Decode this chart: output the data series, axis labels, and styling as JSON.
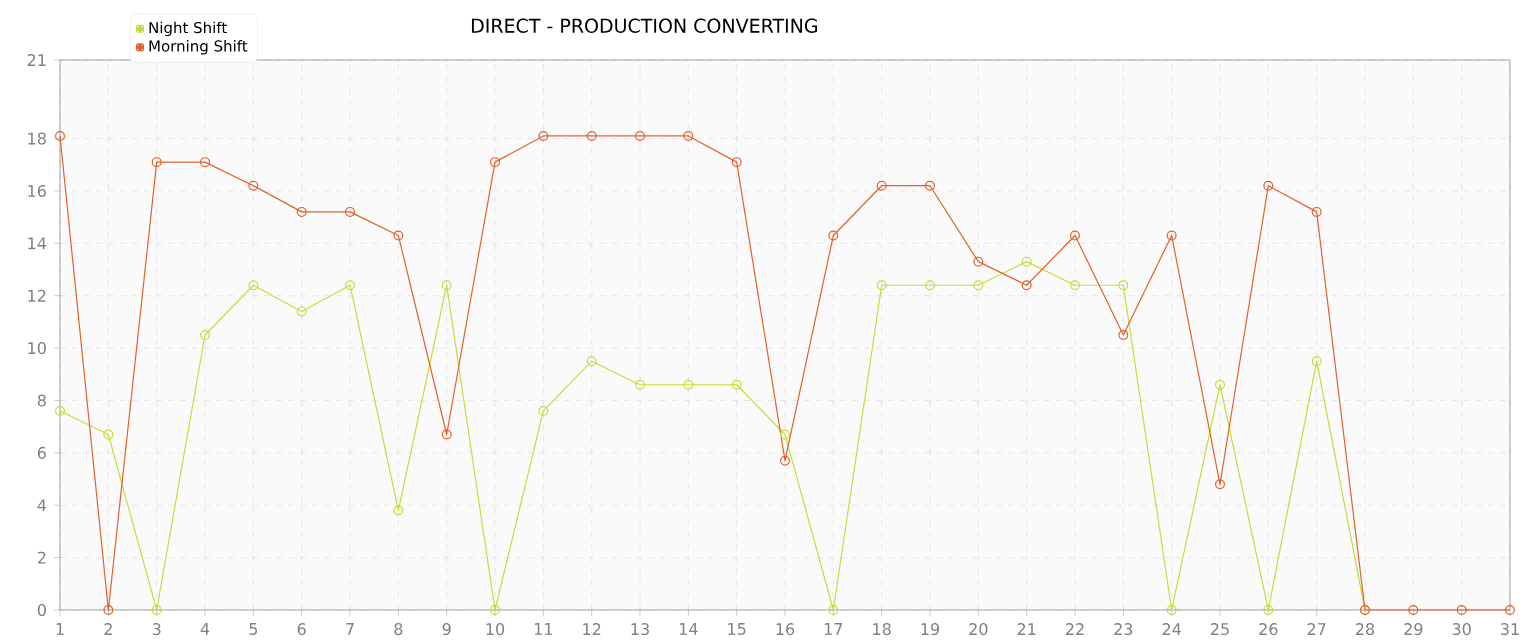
{
  "chart_data": {
    "type": "line",
    "title": "DIRECT - PRODUCTION CONVERTING",
    "x": [
      1,
      2,
      3,
      4,
      5,
      6,
      7,
      8,
      9,
      10,
      11,
      12,
      13,
      14,
      15,
      16,
      17,
      18,
      19,
      20,
      21,
      22,
      23,
      24,
      25,
      26,
      27,
      28,
      29,
      30,
      31
    ],
    "series": [
      {
        "name": "Night Shift",
        "color": "#c3de3a",
        "values": [
          7.6,
          6.7,
          0,
          10.5,
          12.4,
          11.4,
          12.4,
          3.8,
          12.4,
          0,
          7.6,
          9.5,
          8.6,
          8.6,
          8.6,
          6.7,
          0,
          12.4,
          12.4,
          12.4,
          13.3,
          12.4,
          12.4,
          0,
          8.6,
          0,
          9.5,
          0,
          null,
          null,
          null
        ]
      },
      {
        "name": "Morning Shift",
        "color": "#e0622a",
        "values": [
          18.1,
          0,
          17.1,
          17.1,
          16.2,
          15.2,
          15.2,
          14.3,
          6.7,
          17.1,
          18.1,
          18.1,
          18.1,
          18.1,
          17.1,
          5.7,
          14.3,
          16.2,
          16.2,
          13.3,
          12.4,
          14.3,
          10.5,
          14.3,
          4.8,
          16.2,
          15.2,
          0,
          0,
          0,
          0
        ]
      }
    ],
    "xlim": [
      1,
      31
    ],
    "xticks": [
      1,
      2,
      3,
      4,
      5,
      6,
      7,
      8,
      9,
      10,
      11,
      12,
      13,
      14,
      15,
      16,
      17,
      18,
      19,
      20,
      21,
      22,
      23,
      24,
      25,
      26,
      27,
      28,
      29,
      30,
      31
    ],
    "ylim": [
      0,
      21
    ],
    "yticks": [
      0,
      2,
      4,
      6,
      8,
      10,
      12,
      14,
      16,
      18,
      21
    ],
    "grid": true,
    "legend": "top left",
    "marker": "circle",
    "line_style": "solid"
  }
}
